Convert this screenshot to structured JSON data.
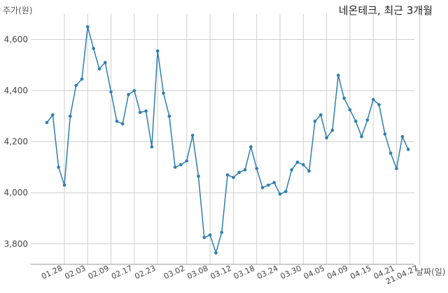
{
  "chart_data": {
    "type": "line",
    "title": "네온테크, 최근 3개월",
    "ylabel": "주가(원)",
    "xlabel": "날짜(일)",
    "ylim": [
      3720,
      4700
    ],
    "yticks": [
      3800,
      4000,
      4200,
      4400,
      4600
    ],
    "ytick_labels": [
      "3,800",
      "4,000",
      "4,200",
      "4,400",
      "4,600"
    ],
    "xtick_labels": [
      "01.28",
      "02.03",
      "02.09",
      "02.17",
      "02.23",
      "03.02",
      "03.08",
      "03.12",
      "03.18",
      "03.24",
      "03.30",
      "04.05",
      "04.09",
      "04.15",
      "04.21",
      "21.04.27"
    ],
    "xtick_index": [
      3,
      7,
      11,
      15,
      19,
      24,
      28,
      32,
      36,
      40,
      44,
      48,
      52,
      56,
      60,
      64
    ],
    "grid": true,
    "color": "#2e7eb0",
    "series": [
      {
        "values": [
          4275,
          4305,
          4100,
          4030,
          4300,
          4420,
          4445,
          4650,
          4565,
          4485,
          4510,
          4395,
          4280,
          4270,
          4385,
          4400,
          4315,
          4320,
          4180,
          4555,
          4390,
          4300,
          4100,
          4110,
          4125,
          4225,
          4065,
          3825,
          3835,
          3765,
          3845,
          4070,
          4060,
          4080,
          4090,
          4180,
          4095,
          4020,
          4030,
          4040,
          3995,
          4005,
          4090,
          4120,
          4110,
          4085,
          4280,
          4305,
          4215,
          4245,
          4460,
          4370,
          4325,
          4280,
          4220,
          4285,
          4365,
          4345,
          4230,
          4155,
          4095,
          4220,
          4170
        ]
      }
    ]
  }
}
